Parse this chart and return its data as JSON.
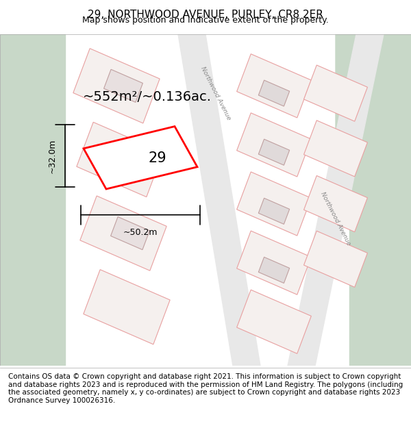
{
  "title": "29, NORTHWOOD AVENUE, PURLEY, CR8 2ER",
  "subtitle": "Map shows position and indicative extent of the property.",
  "footer": "Contains OS data © Crown copyright and database right 2021. This information is subject to Crown copyright and database rights 2023 and is reproduced with the permission of HM Land Registry. The polygons (including the associated geometry, namely x, y co-ordinates) are subject to Crown copyright and database rights 2023 Ordnance Survey 100026316.",
  "area_label": "~552m²/~0.136ac.",
  "width_label": "~50.2m",
  "height_label": "~32.0m",
  "number_label": "29",
  "bg_map_color": "#f2f2f2",
  "green_area_color": "#c8d8c8",
  "road_color": "#ffffff",
  "plot_outline_color": "#e8c0c0",
  "highlight_color": "#ff0000",
  "building_fill": "#d8d8d8",
  "street_label1": "Northwood Avenue",
  "street_label2": "Northwood Avenue",
  "title_fontsize": 11,
  "subtitle_fontsize": 9,
  "footer_fontsize": 7.5
}
